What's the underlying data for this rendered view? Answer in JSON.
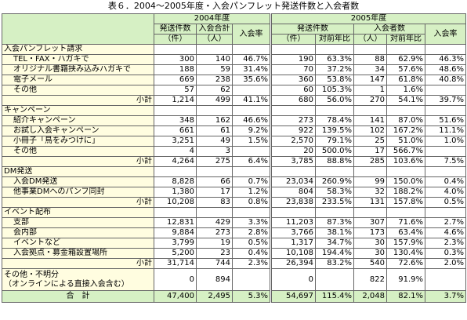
{
  "title": "表６．2004～2005年度・入会パンフレット発送件数と入会者数",
  "headers": {
    "year2004": "2004年度",
    "year2005": "2005年度",
    "h2004_sent": "発送件数（件）",
    "h2004_sent_a": "発送件数",
    "h2004_sent_b": "（件）",
    "h2004_members_a": "入会合計",
    "h2004_members_b": "（人）",
    "h2004_rate": "入会率",
    "h2005_sent": "発送件数",
    "h2005_sent_unit": "（件）",
    "h2005_sent_yoy": "対前年比",
    "h2005_members": "入会者数",
    "h2005_members_unit": "（人）",
    "h2005_members_yoy": "対前年比",
    "h2005_rate": "入会率"
  },
  "sections": [
    {
      "name": "入会パンフレット請求",
      "rows": [
        {
          "label": "TEL・FAX・ハガキで",
          "v": [
            "300",
            "140",
            "46.7%",
            "190",
            "63.3%",
            "88",
            "62.9%",
            "46.3%"
          ]
        },
        {
          "label": "オリジナル書籍挟み込みハガキで",
          "v": [
            "188",
            "59",
            "31.4%",
            "70",
            "37.2%",
            "34",
            "57.6%",
            "48.6%"
          ]
        },
        {
          "label": "電子メール",
          "v": [
            "669",
            "238",
            "35.6%",
            "360",
            "53.8%",
            "147",
            "61.8%",
            "40.8%"
          ]
        },
        {
          "label": "その他",
          "v": [
            "57",
            "62",
            "",
            "60",
            "105.3%",
            "1",
            "1.6%",
            ""
          ]
        }
      ],
      "subtotal": {
        "label": "小計",
        "v": [
          "1,214",
          "499",
          "41.1%",
          "680",
          "56.0%",
          "270",
          "54.1%",
          "39.7%"
        ]
      }
    },
    {
      "name": "キャンペーン",
      "rows": [
        {
          "label": "紹介キャンペーン",
          "v": [
            "348",
            "162",
            "46.6%",
            "273",
            "78.4%",
            "141",
            "87.0%",
            "51.6%"
          ]
        },
        {
          "label": "お試し入会キャンペーン",
          "v": [
            "661",
            "61",
            "9.2%",
            "922",
            "139.5%",
            "102",
            "167.2%",
            "11.1%"
          ]
        },
        {
          "label": "小冊子「鳥をみつけに」",
          "v": [
            "3,251",
            "49",
            "1.5%",
            "2,570",
            "79.1%",
            "25",
            "51.0%",
            "1.0%"
          ]
        },
        {
          "label": "その他",
          "v": [
            "4",
            "3",
            "",
            "20",
            "500.0%",
            "17",
            "566.7%",
            ""
          ]
        }
      ],
      "subtotal": {
        "label": "小計",
        "v": [
          "4,264",
          "275",
          "6.4%",
          "3,785",
          "88.8%",
          "285",
          "103.6%",
          "7.5%"
        ]
      }
    },
    {
      "name": "DM発送",
      "rows": [
        {
          "label": "入会DM発送",
          "v": [
            "8,828",
            "66",
            "0.7%",
            "23,034",
            "260.9%",
            "99",
            "150.0%",
            "0.4%"
          ]
        },
        {
          "label": "他事業DMへのパンフ同封",
          "v": [
            "1,380",
            "17",
            "1.2%",
            "804",
            "58.3%",
            "32",
            "188.2%",
            "4.0%"
          ]
        }
      ],
      "subtotal": {
        "label": "小計",
        "v": [
          "10,208",
          "83",
          "0.8%",
          "23,838",
          "233.5%",
          "131",
          "157.8%",
          "0.5%"
        ]
      }
    },
    {
      "name": "イベント配布",
      "rows": [
        {
          "label": "支部",
          "v": [
            "12,831",
            "429",
            "3.3%",
            "11,203",
            "87.3%",
            "307",
            "71.6%",
            "2.7%"
          ]
        },
        {
          "label": "会内部",
          "v": [
            "9,884",
            "273",
            "2.8%",
            "3,766",
            "38.1%",
            "173",
            "63.4%",
            "4.6%"
          ]
        },
        {
          "label": "イベントなど",
          "v": [
            "3,799",
            "19",
            "0.5%",
            "1,317",
            "34.7%",
            "30",
            "157.9%",
            "2.3%"
          ]
        },
        {
          "label": "入会拠点・募金箱設置場所",
          "v": [
            "5,200",
            "23",
            "0.4%",
            "10,108",
            "194.4%",
            "30",
            "130.4%",
            "0.3%"
          ]
        }
      ],
      "subtotal": {
        "label": "小計",
        "v": [
          "31,714",
          "744",
          "2.3%",
          "26,394",
          "83.2%",
          "540",
          "72.6%",
          "2.0%"
        ]
      }
    }
  ],
  "other": {
    "label1": "その他・不明分",
    "label2": "（オンラインによる直接入会含む）",
    "v": [
      "0",
      "894",
      "",
      "0",
      "",
      "822",
      "91.9%",
      ""
    ]
  },
  "total": {
    "label": "合　計",
    "v": [
      "47,400",
      "2,495",
      "5.3%",
      "54,697",
      "115.4%",
      "2,048",
      "82.1%",
      "3.7%"
    ]
  }
}
